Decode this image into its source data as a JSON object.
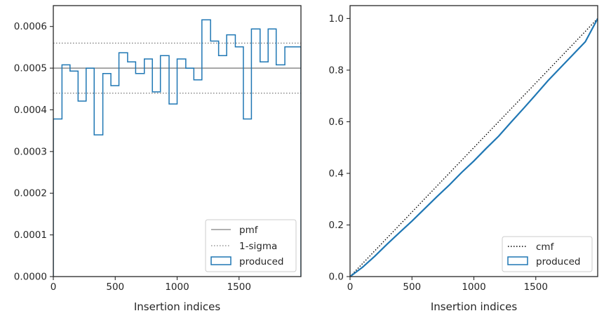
{
  "chart_data": [
    {
      "type": "line",
      "title": "",
      "xlabel": "Insertion indices",
      "ylabel": "",
      "xlim": [
        0,
        2000
      ],
      "ylim": [
        0,
        0.00065
      ],
      "grid": false,
      "legend_position": "lower-right",
      "x_ticks": [
        "0",
        "500",
        "1000",
        "1500"
      ],
      "y_ticks": [
        "0.0000",
        "0.0001",
        "0.0002",
        "0.0003",
        "0.0004",
        "0.0005",
        "0.0006"
      ],
      "x_tick_values": [
        0,
        500,
        1000,
        1500
      ],
      "y_tick_values": [
        0,
        0.0001,
        0.0002,
        0.0003,
        0.0004,
        0.0005,
        0.0006
      ],
      "pmf": {
        "name": "pmf",
        "value": 0.0005,
        "color": "#808080",
        "style": "solid"
      },
      "one_sigma": {
        "name": "1-sigma",
        "values": [
          0.00044,
          0.00056
        ],
        "color": "#808080",
        "style": "dotted"
      },
      "histogram": {
        "name": "produced",
        "color": "#1f77b4",
        "bin_edges": [
          0,
          70,
          135,
          200,
          265,
          330,
          400,
          465,
          530,
          600,
          665,
          735,
          800,
          865,
          935,
          1000,
          1070,
          1135,
          1200,
          1270,
          1335,
          1400,
          1470,
          1535,
          1600,
          1670,
          1735,
          1800,
          1870,
          1935,
          2000
        ],
        "values": [
          0.000378,
          0.000508,
          0.000493,
          0.000421,
          0.0005,
          0.00034,
          0.000487,
          0.000458,
          0.000537,
          0.000515,
          0.000487,
          0.000522,
          0.000443,
          0.00053,
          0.000414,
          0.000522,
          0.0005,
          0.000472,
          0.000616,
          0.000565,
          0.00053,
          0.00058,
          0.000551,
          0.000378,
          0.000594,
          0.000515,
          0.000594,
          0.000508,
          0.000551,
          0.000551
        ]
      },
      "legend": [
        "pmf",
        "1-sigma",
        "produced"
      ]
    },
    {
      "type": "line",
      "title": "",
      "xlabel": "Insertion indices",
      "ylabel": "",
      "xlim": [
        0,
        2000
      ],
      "ylim": [
        0,
        1.05
      ],
      "grid": false,
      "legend_position": "lower-right",
      "x_ticks": [
        "0",
        "500",
        "1000",
        "1500"
      ],
      "y_ticks": [
        "0.0",
        "0.2",
        "0.4",
        "0.6",
        "0.8",
        "1.0"
      ],
      "x_tick_values": [
        0,
        500,
        1000,
        1500
      ],
      "y_tick_values": [
        0,
        0.2,
        0.4,
        0.6,
        0.8,
        1.0
      ],
      "series": [
        {
          "name": "cmf",
          "color": "#000000",
          "style": "dotted",
          "x": [
            0,
            2000
          ],
          "y": [
            0,
            1.0
          ]
        },
        {
          "name": "produced",
          "color": "#1f77b4",
          "style": "solid",
          "x": [
            0,
            100,
            200,
            300,
            400,
            500,
            600,
            700,
            800,
            900,
            1000,
            1100,
            1200,
            1300,
            1400,
            1500,
            1600,
            1700,
            1800,
            1900,
            2000
          ],
          "y": [
            0,
            0.036,
            0.079,
            0.126,
            0.171,
            0.215,
            0.262,
            0.309,
            0.354,
            0.403,
            0.448,
            0.497,
            0.544,
            0.598,
            0.651,
            0.705,
            0.76,
            0.81,
            0.86,
            0.91,
            1.0
          ]
        }
      ],
      "legend": [
        "cmf",
        "produced"
      ]
    }
  ]
}
